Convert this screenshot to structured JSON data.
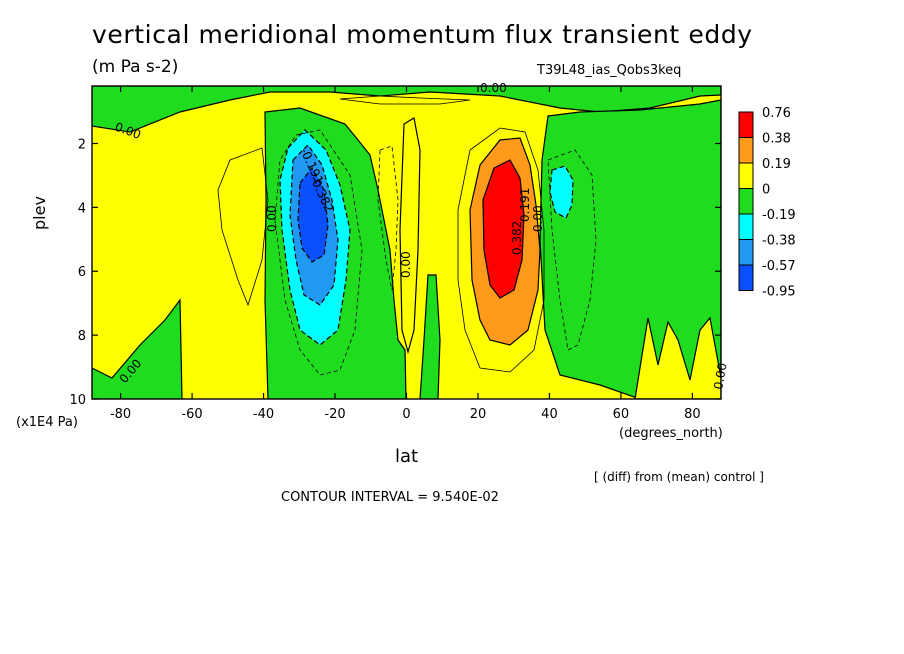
{
  "chart_data": {
    "type": "heatmap",
    "title": "vertical meridional momentum flux transient eddy",
    "units": "(m Pa s-2)",
    "run_label": "T39L48_ias_Qobs3keq",
    "xlabel": "lat",
    "x_unit": "(degrees_north)",
    "ylabel": "plev",
    "y_unit": "(x1E4 Pa)",
    "x_ticks": [
      "-80",
      "-60",
      "-40",
      "-20",
      "0",
      "20",
      "40",
      "60",
      "80"
    ],
    "y_ticks": [
      "2",
      "4",
      "6",
      "8",
      "10"
    ],
    "xlim": [
      -88,
      88
    ],
    "ylim": [
      10,
      0.2
    ],
    "note": "[ (diff) from (mean) control ]",
    "contour_interval": "CONTOUR INTERVAL = 9.540E-02",
    "contour_labels": [
      "0.00",
      "0.00",
      "0.00",
      "0.00",
      "0.00",
      "-0.191",
      "-0.382",
      "0.382",
      "0.191",
      "0.00",
      "0.00"
    ],
    "colorbar": {
      "levels": [
        "0.76",
        "0.38",
        "0.19",
        "0",
        "-0.19",
        "-0.38",
        "-0.57",
        "-0.95"
      ],
      "colors": [
        "#ff0000",
        "#ff9a1a",
        "#ffff00",
        "#1fdc1f",
        "#00ffff",
        "#1f9af0",
        "#0a50ff"
      ]
    },
    "features": [
      {
        "name": "negative-core",
        "lat": -26,
        "plev": 4.2,
        "value": -0.95
      },
      {
        "name": "positive-core",
        "lat": 28,
        "plev": 4.5,
        "value": 0.76
      },
      {
        "name": "negative-secondary",
        "lat": 44,
        "plev": 3.2,
        "value": -0.38
      }
    ]
  }
}
